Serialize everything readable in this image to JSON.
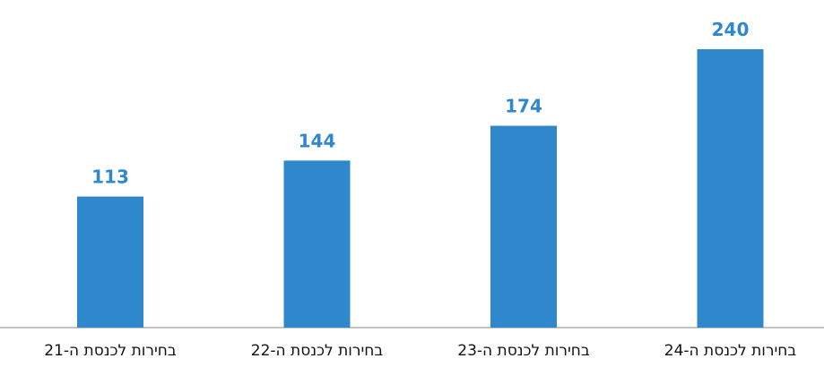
{
  "chart_data": {
    "type": "bar",
    "categories": [
      "בחירות לכנסת ה-21",
      "בחירות לכנסת ה-22",
      "בחירות לכנסת ה-23",
      "בחירות לכנסת ה-24"
    ],
    "values": [
      113,
      144,
      174,
      240
    ],
    "title": "",
    "xlabel": "",
    "ylabel": "",
    "ylim": [
      0,
      240
    ],
    "grid": false,
    "legend": "none",
    "colors": {
      "bar": "#2f87cc",
      "value_label": "#2f87cc",
      "axis": "#8a8a8a",
      "category_label": "#111111"
    }
  }
}
